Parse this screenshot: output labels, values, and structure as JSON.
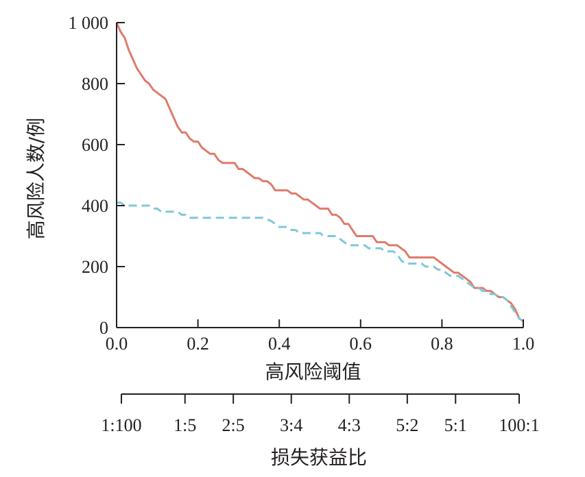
{
  "chart_data": {
    "type": "line",
    "xlabel": "高风险阈值",
    "ylabel": "高风险人数/例",
    "xlim": [
      0,
      1
    ],
    "ylim": [
      0,
      1000
    ],
    "x_ticks": [
      {
        "value": 0.0,
        "label": "0.0"
      },
      {
        "value": 0.2,
        "label": "0.2"
      },
      {
        "value": 0.4,
        "label": "0.4"
      },
      {
        "value": 0.6,
        "label": "0.6"
      },
      {
        "value": 0.8,
        "label": "0.8"
      },
      {
        "value": 1.0,
        "label": "1.0"
      }
    ],
    "y_ticks": [
      {
        "value": 0,
        "label": "0"
      },
      {
        "value": 200,
        "label": "200"
      },
      {
        "value": 400,
        "label": "400"
      },
      {
        "value": 600,
        "label": "600"
      },
      {
        "value": 800,
        "label": "800"
      },
      {
        "value": 1000,
        "label": "1 000"
      }
    ],
    "cost_benefit_axis": {
      "label": "损失获益比",
      "ticks": [
        {
          "value": 0.01,
          "label": "1:100"
        },
        {
          "value": 0.1667,
          "label": "1:5"
        },
        {
          "value": 0.2857,
          "label": "2:5"
        },
        {
          "value": 0.4286,
          "label": "3:4"
        },
        {
          "value": 0.5714,
          "label": "4:3"
        },
        {
          "value": 0.7143,
          "label": "5:2"
        },
        {
          "value": 0.8333,
          "label": "5:1"
        },
        {
          "value": 0.99,
          "label": "100:1"
        }
      ]
    },
    "grid": false,
    "series": [
      {
        "color": "#e07a6a",
        "style": "solid",
        "points": [
          [
            0.0,
            1000
          ],
          [
            0.01,
            970
          ],
          [
            0.02,
            950
          ],
          [
            0.03,
            910
          ],
          [
            0.04,
            880
          ],
          [
            0.05,
            850
          ],
          [
            0.06,
            830
          ],
          [
            0.07,
            810
          ],
          [
            0.08,
            800
          ],
          [
            0.09,
            780
          ],
          [
            0.1,
            770
          ],
          [
            0.11,
            760
          ],
          [
            0.12,
            750
          ],
          [
            0.13,
            720
          ],
          [
            0.14,
            690
          ],
          [
            0.15,
            660
          ],
          [
            0.16,
            640
          ],
          [
            0.17,
            640
          ],
          [
            0.18,
            620
          ],
          [
            0.19,
            610
          ],
          [
            0.2,
            610
          ],
          [
            0.21,
            590
          ],
          [
            0.22,
            580
          ],
          [
            0.23,
            570
          ],
          [
            0.24,
            570
          ],
          [
            0.25,
            550
          ],
          [
            0.26,
            540
          ],
          [
            0.27,
            540
          ],
          [
            0.28,
            540
          ],
          [
            0.29,
            540
          ],
          [
            0.3,
            520
          ],
          [
            0.31,
            520
          ],
          [
            0.32,
            510
          ],
          [
            0.33,
            500
          ],
          [
            0.34,
            490
          ],
          [
            0.35,
            490
          ],
          [
            0.36,
            480
          ],
          [
            0.37,
            480
          ],
          [
            0.38,
            470
          ],
          [
            0.39,
            450
          ],
          [
            0.4,
            450
          ],
          [
            0.41,
            450
          ],
          [
            0.42,
            450
          ],
          [
            0.43,
            440
          ],
          [
            0.44,
            440
          ],
          [
            0.45,
            430
          ],
          [
            0.46,
            420
          ],
          [
            0.47,
            420
          ],
          [
            0.48,
            410
          ],
          [
            0.49,
            400
          ],
          [
            0.5,
            390
          ],
          [
            0.51,
            390
          ],
          [
            0.52,
            390
          ],
          [
            0.53,
            370
          ],
          [
            0.54,
            370
          ],
          [
            0.55,
            360
          ],
          [
            0.56,
            340
          ],
          [
            0.57,
            340
          ],
          [
            0.58,
            320
          ],
          [
            0.59,
            300
          ],
          [
            0.6,
            300
          ],
          [
            0.61,
            300
          ],
          [
            0.62,
            300
          ],
          [
            0.63,
            300
          ],
          [
            0.64,
            280
          ],
          [
            0.65,
            280
          ],
          [
            0.66,
            280
          ],
          [
            0.67,
            270
          ],
          [
            0.68,
            270
          ],
          [
            0.69,
            270
          ],
          [
            0.7,
            260
          ],
          [
            0.71,
            250
          ],
          [
            0.72,
            230
          ],
          [
            0.73,
            230
          ],
          [
            0.74,
            230
          ],
          [
            0.75,
            230
          ],
          [
            0.76,
            230
          ],
          [
            0.77,
            230
          ],
          [
            0.78,
            230
          ],
          [
            0.79,
            220
          ],
          [
            0.8,
            210
          ],
          [
            0.81,
            200
          ],
          [
            0.82,
            190
          ],
          [
            0.83,
            180
          ],
          [
            0.84,
            180
          ],
          [
            0.85,
            170
          ],
          [
            0.86,
            160
          ],
          [
            0.87,
            150
          ],
          [
            0.88,
            130
          ],
          [
            0.89,
            130
          ],
          [
            0.9,
            130
          ],
          [
            0.91,
            120
          ],
          [
            0.92,
            120
          ],
          [
            0.93,
            110
          ],
          [
            0.94,
            100
          ],
          [
            0.95,
            100
          ],
          [
            0.96,
            90
          ],
          [
            0.97,
            80
          ],
          [
            0.98,
            60
          ],
          [
            0.99,
            30
          ],
          [
            1.0,
            20
          ]
        ]
      },
      {
        "color": "#7ec8d8",
        "style": "dashed",
        "points": [
          [
            0.0,
            410
          ],
          [
            0.01,
            410
          ],
          [
            0.02,
            400
          ],
          [
            0.03,
            400
          ],
          [
            0.04,
            400
          ],
          [
            0.05,
            400
          ],
          [
            0.06,
            400
          ],
          [
            0.07,
            400
          ],
          [
            0.08,
            400
          ],
          [
            0.09,
            390
          ],
          [
            0.1,
            390
          ],
          [
            0.11,
            380
          ],
          [
            0.12,
            380
          ],
          [
            0.13,
            380
          ],
          [
            0.14,
            380
          ],
          [
            0.15,
            380
          ],
          [
            0.16,
            370
          ],
          [
            0.17,
            370
          ],
          [
            0.18,
            360
          ],
          [
            0.19,
            360
          ],
          [
            0.2,
            360
          ],
          [
            0.22,
            360
          ],
          [
            0.24,
            360
          ],
          [
            0.26,
            360
          ],
          [
            0.28,
            360
          ],
          [
            0.3,
            360
          ],
          [
            0.32,
            360
          ],
          [
            0.34,
            360
          ],
          [
            0.36,
            360
          ],
          [
            0.38,
            350
          ],
          [
            0.39,
            340
          ],
          [
            0.4,
            330
          ],
          [
            0.41,
            330
          ],
          [
            0.42,
            330
          ],
          [
            0.43,
            320
          ],
          [
            0.44,
            320
          ],
          [
            0.45,
            310
          ],
          [
            0.46,
            310
          ],
          [
            0.47,
            310
          ],
          [
            0.48,
            310
          ],
          [
            0.49,
            310
          ],
          [
            0.5,
            310
          ],
          [
            0.51,
            300
          ],
          [
            0.52,
            300
          ],
          [
            0.53,
            300
          ],
          [
            0.54,
            300
          ],
          [
            0.55,
            290
          ],
          [
            0.56,
            280
          ],
          [
            0.57,
            270
          ],
          [
            0.58,
            270
          ],
          [
            0.59,
            270
          ],
          [
            0.6,
            270
          ],
          [
            0.61,
            270
          ],
          [
            0.62,
            260
          ],
          [
            0.63,
            260
          ],
          [
            0.64,
            260
          ],
          [
            0.65,
            260
          ],
          [
            0.66,
            250
          ],
          [
            0.67,
            250
          ],
          [
            0.68,
            250
          ],
          [
            0.69,
            240
          ],
          [
            0.7,
            220
          ],
          [
            0.71,
            210
          ],
          [
            0.72,
            210
          ],
          [
            0.73,
            210
          ],
          [
            0.74,
            210
          ],
          [
            0.75,
            210
          ],
          [
            0.76,
            200
          ],
          [
            0.77,
            200
          ],
          [
            0.78,
            200
          ],
          [
            0.79,
            190
          ],
          [
            0.8,
            190
          ],
          [
            0.81,
            180
          ],
          [
            0.82,
            170
          ],
          [
            0.83,
            170
          ],
          [
            0.84,
            170
          ],
          [
            0.85,
            160
          ],
          [
            0.86,
            150
          ],
          [
            0.87,
            140
          ],
          [
            0.88,
            130
          ],
          [
            0.89,
            130
          ],
          [
            0.9,
            120
          ],
          [
            0.91,
            120
          ],
          [
            0.92,
            110
          ],
          [
            0.93,
            110
          ],
          [
            0.94,
            100
          ],
          [
            0.95,
            100
          ],
          [
            0.96,
            90
          ],
          [
            0.97,
            70
          ],
          [
            0.98,
            50
          ],
          [
            0.99,
            30
          ],
          [
            1.0,
            20
          ]
        ]
      }
    ]
  }
}
